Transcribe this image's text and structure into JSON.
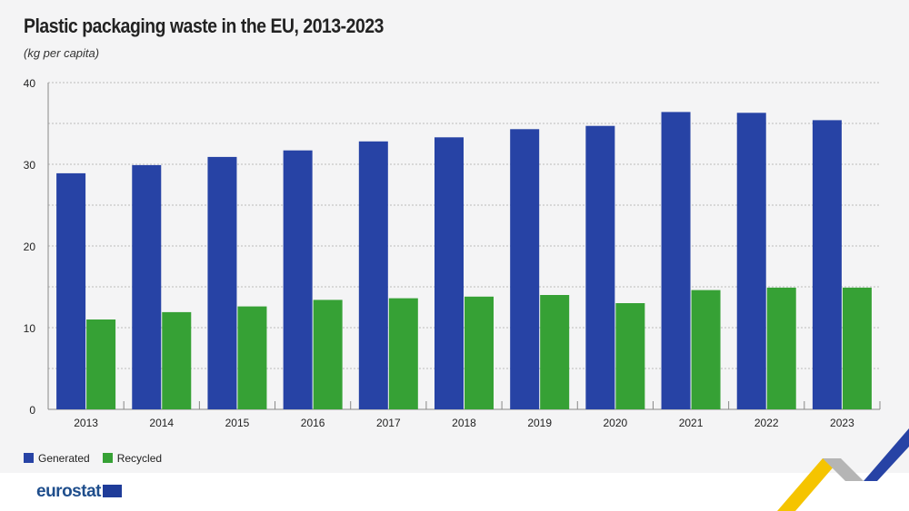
{
  "chart_data": {
    "type": "bar",
    "title": "Plastic packaging waste in the EU, 2013-2023",
    "subtitle": "(kg per capita)",
    "categories": [
      "2013",
      "2014",
      "2015",
      "2016",
      "2017",
      "2018",
      "2019",
      "2020",
      "2021",
      "2022",
      "2023"
    ],
    "series": [
      {
        "name": "Generated",
        "color": "#2743a5",
        "values": [
          28.9,
          29.9,
          30.9,
          31.7,
          32.8,
          33.3,
          34.3,
          34.7,
          36.4,
          36.3,
          35.4
        ]
      },
      {
        "name": "Recycled",
        "color": "#36a135",
        "values": [
          11.0,
          11.9,
          12.6,
          13.4,
          13.6,
          13.8,
          14.0,
          13.0,
          14.6,
          14.9,
          14.9
        ]
      }
    ],
    "ylim": [
      0,
      40
    ],
    "yticks": [
      "0",
      "10",
      "20",
      "30",
      "40"
    ],
    "grid": true,
    "legend": "bottom-left"
  },
  "footer": {
    "logo": "eurostat"
  }
}
